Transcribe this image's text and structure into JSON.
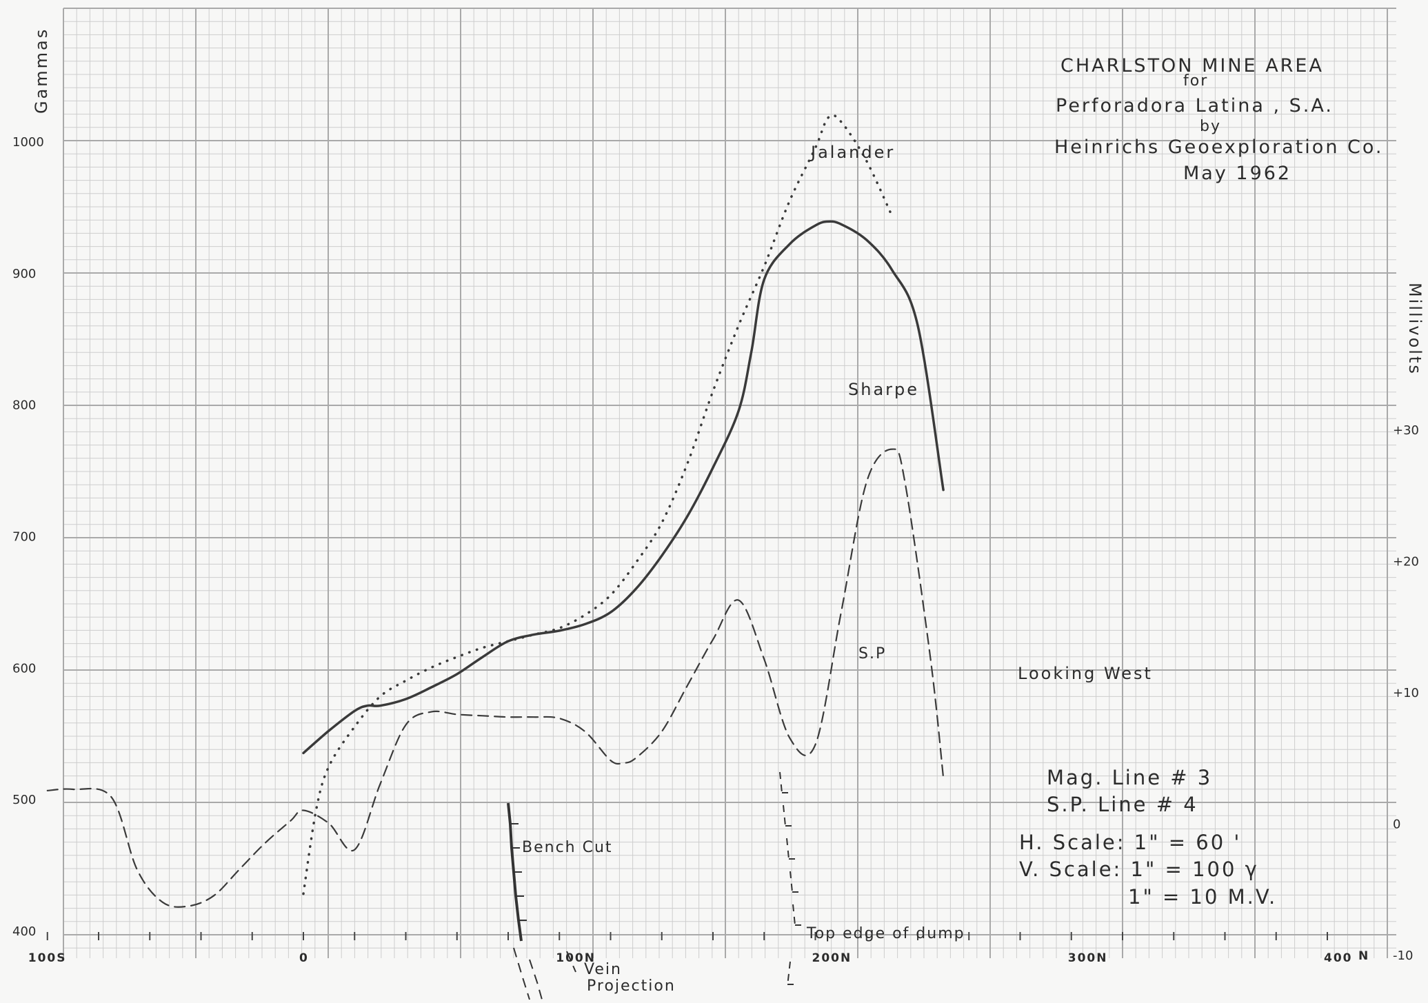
{
  "chart_data": {
    "type": "line",
    "title": "CHARLSTON MINE AREA",
    "title_lines": [
      "for",
      "Perforadora Latina , S.A.",
      "by",
      "Heinrichs Geoexploration Co.",
      "May 1962"
    ],
    "ylabel_left": "Gammas",
    "ylabel_right": "Millivolts",
    "ylim_left": [
      400,
      1000
    ],
    "ylim_right": [
      -10,
      30
    ],
    "xlim": [
      -100,
      400
    ],
    "y_ticks_left": [
      {
        "v": 1000,
        "label": "1000"
      },
      {
        "v": 900,
        "label": "900"
      },
      {
        "v": 800,
        "label": "800"
      },
      {
        "v": 700,
        "label": "700"
      },
      {
        "v": 600,
        "label": "600"
      },
      {
        "v": 500,
        "label": "500"
      },
      {
        "v": 400,
        "label": "400"
      }
    ],
    "y_ticks_right": [
      {
        "v": 30,
        "label": "+30"
      },
      {
        "v": 20,
        "label": "+20"
      },
      {
        "v": 10,
        "label": "+10"
      },
      {
        "v": 0,
        "label": "0"
      },
      {
        "v": -10,
        "label": "-10"
      }
    ],
    "x_ticks": [
      {
        "v": -100,
        "label": "100S"
      },
      {
        "v": 0,
        "label": "0"
      },
      {
        "v": 100,
        "label": "100N"
      },
      {
        "v": 200,
        "label": "200N"
      },
      {
        "v": 300,
        "label": "300N"
      },
      {
        "v": 400,
        "label": "400"
      }
    ],
    "x_axis_suffix": "N",
    "grid": true,
    "series": [
      {
        "name": "Sharpe",
        "axis": "left",
        "style": "solid",
        "x": [
          0,
          10,
          20,
          25,
          30,
          40,
          50,
          60,
          70,
          80,
          90,
          100,
          110,
          120,
          130,
          140,
          150,
          160,
          170,
          175,
          180,
          190,
          200,
          205,
          210,
          220,
          230,
          240,
          250
        ],
        "y": [
          535,
          552,
          567,
          571,
          571,
          576,
          585,
          595,
          608,
          620,
          625,
          628,
          633,
          642,
          660,
          685,
          715,
          752,
          795,
          840,
          895,
          922,
          936,
          939,
          937,
          925,
          902,
          860,
          735
        ]
      },
      {
        "name": "Jalander",
        "axis": "left",
        "style": "dotted",
        "x": [
          0,
          5,
          10,
          20,
          30,
          40,
          50,
          60,
          70,
          80,
          90,
          100,
          110,
          120,
          130,
          140,
          150,
          160,
          170,
          180,
          190,
          200,
          205,
          210,
          220,
          230
        ],
        "y": [
          428,
          492,
          525,
          555,
          578,
          590,
          600,
          608,
          615,
          620,
          625,
          630,
          640,
          655,
          680,
          710,
          755,
          810,
          860,
          905,
          955,
          995,
          1018,
          1015,
          985,
          943
        ]
      },
      {
        "name": "S.P",
        "axis": "right",
        "style": "dashed",
        "x": [
          -100,
          -90,
          -75,
          -65,
          -55,
          -45,
          -35,
          -25,
          -15,
          -5,
          0,
          10,
          20,
          30,
          40,
          50,
          60,
          70,
          80,
          90,
          100,
          110,
          120,
          125,
          130,
          140,
          150,
          160,
          170,
          180,
          190,
          200,
          210,
          220,
          230,
          235,
          245,
          250
        ],
        "y": [
          2.5,
          2.6,
          2,
          -3.5,
          -6,
          -6.3,
          -5.5,
          -3.5,
          -1.5,
          0.2,
          1,
          0,
          -2,
          3,
          7.5,
          8.5,
          8.3,
          8.2,
          8.1,
          8.1,
          8,
          7,
          4.8,
          4.6,
          5,
          7,
          10.5,
          14,
          17,
          12.5,
          6.5,
          6,
          16,
          26,
          28.5,
          26,
          12.5,
          3.5
        ]
      }
    ],
    "annotations": [
      "Bench Cut",
      "Vein",
      "Projection",
      "Top edge of dump",
      "Looking West",
      "Mag. Line # 3",
      "S.P. Line # 4",
      "H. Scale: 1\" = 60 '",
      "V. Scale: 1\" = 100 γ",
      "1\" = 10 M.V."
    ]
  }
}
